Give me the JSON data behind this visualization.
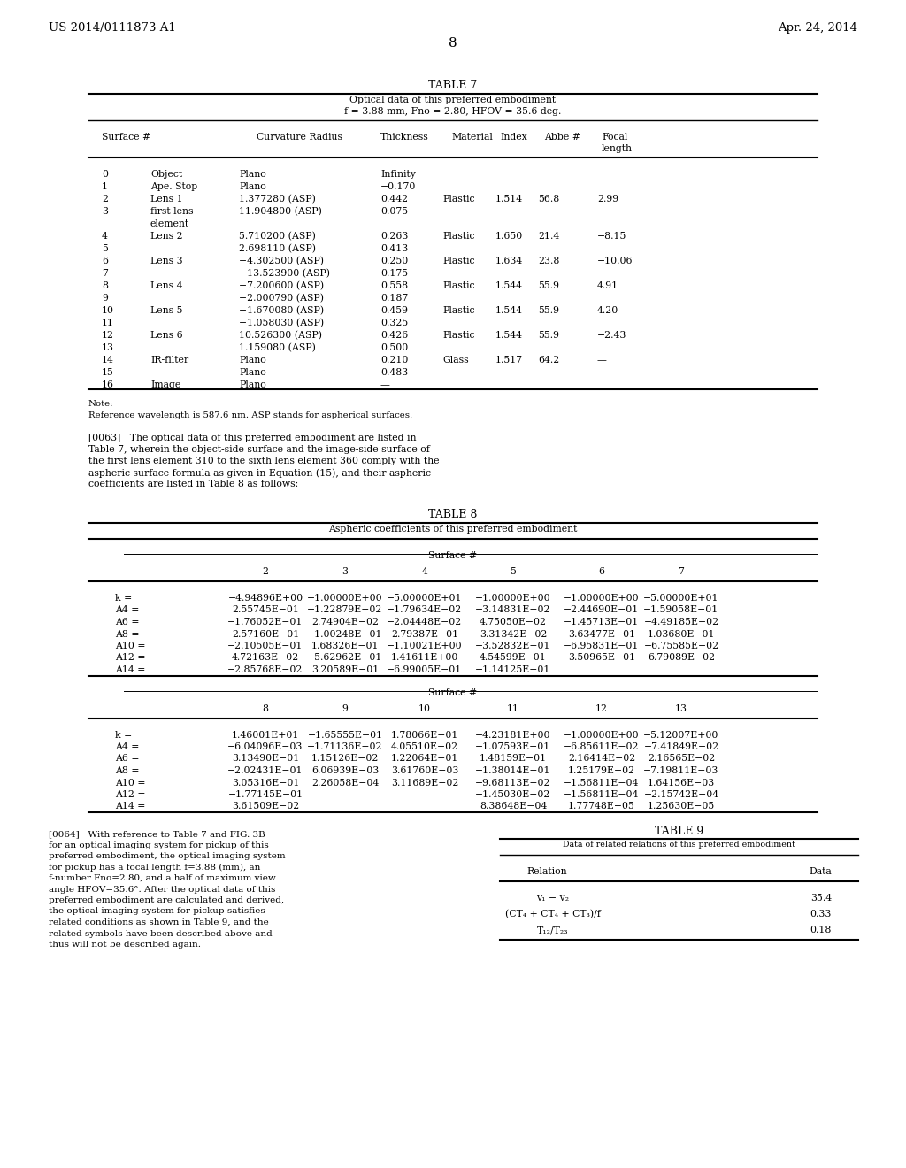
{
  "header_left": "US 2014/0111873 A1",
  "header_right": "Apr. 24, 2014",
  "page_number": "8",
  "table7_title": "TABLE 7",
  "table7_subtitle1": "Optical data of this preferred embodiment",
  "table7_subtitle2": "f = 3.88 mm, Fno = 2.80, HFOV = 35.6 deg.",
  "table7_col_headers": [
    "Surface #",
    "",
    "Curvature Radius",
    "Thickness",
    "Material",
    "Index",
    "Abbe #",
    "Focal\nlength"
  ],
  "table7_rows": [
    [
      "0",
      "Object",
      "Plano",
      "Infinity",
      "",
      "",
      "",
      ""
    ],
    [
      "1",
      "Ape. Stop",
      "Plano",
      "−0.170",
      "",
      "",
      "",
      ""
    ],
    [
      "2",
      "Lens 1",
      "1.377280 (ASP)",
      "0.442",
      "Plastic",
      "1.514",
      "56.8",
      "2.99"
    ],
    [
      "3",
      "first lens",
      "11.904800 (ASP)",
      "0.075",
      "",
      "",
      "",
      ""
    ],
    [
      "",
      "element",
      "",
      "",
      "",
      "",
      "",
      ""
    ],
    [
      "4",
      "Lens 2",
      "5.710200 (ASP)",
      "0.263",
      "Plastic",
      "1.650",
      "21.4",
      "−8.15"
    ],
    [
      "5",
      "",
      "2.698110 (ASP)",
      "0.413",
      "",
      "",
      "",
      ""
    ],
    [
      "6",
      "Lens 3",
      "−4.302500 (ASP)",
      "0.250",
      "Plastic",
      "1.634",
      "23.8",
      "−10.06"
    ],
    [
      "7",
      "",
      "−13.523900 (ASP)",
      "0.175",
      "",
      "",
      "",
      ""
    ],
    [
      "8",
      "Lens 4",
      "−7.200600 (ASP)",
      "0.558",
      "Plastic",
      "1.544",
      "55.9",
      "4.91"
    ],
    [
      "9",
      "",
      "−2.000790 (ASP)",
      "0.187",
      "",
      "",
      "",
      ""
    ],
    [
      "10",
      "Lens 5",
      "−1.670080 (ASP)",
      "0.459",
      "Plastic",
      "1.544",
      "55.9",
      "4.20"
    ],
    [
      "11",
      "",
      "−1.058030 (ASP)",
      "0.325",
      "",
      "",
      "",
      ""
    ],
    [
      "12",
      "Lens 6",
      "10.526300 (ASP)",
      "0.426",
      "Plastic",
      "1.544",
      "55.9",
      "−2.43"
    ],
    [
      "13",
      "",
      "1.159080 (ASP)",
      "0.500",
      "",
      "",
      "",
      ""
    ],
    [
      "14",
      "IR-filter",
      "Plano",
      "0.210",
      "Glass",
      "1.517",
      "64.2",
      "—"
    ],
    [
      "15",
      "",
      "Plano",
      "0.483",
      "",
      "",
      "",
      ""
    ],
    [
      "16",
      "Image",
      "Plano",
      "—",
      "",
      "",
      "",
      ""
    ]
  ],
  "note_text": "Note:\nReference wavelength is 587.6 nm. ASP stands for aspherical surfaces.",
  "para63": "[0063]   The optical data of this preferred embodiment are listed in Table 7, wherein the object-side surface and the image-side surface of the first lens element 310 to the sixth lens element 360 comply with the aspheric surface formula as given in Equation (15), and their aspheric coefficients are listed in Table 8 as follows:",
  "table8_title": "TABLE 8",
  "table8_subtitle": "Aspheric coefficients of this preferred embodiment",
  "table8_surf1": [
    "2",
    "3",
    "4",
    "5",
    "6",
    "7"
  ],
  "table8_surf2": [
    "8",
    "9",
    "10",
    "11",
    "12",
    "13"
  ],
  "table8_rows1": [
    [
      "k =",
      "−4.94896E+00",
      "−1.00000E+00",
      "−5.00000E+01",
      "−1.00000E+00",
      "−1.00000E+00",
      "−5.00000E+01"
    ],
    [
      "A4 =",
      "2.55745E−01",
      "−1.22879E−02",
      "−1.79634E−02",
      "−3.14831E−02",
      "−2.44690E−01",
      "−1.59058E−01"
    ],
    [
      "A6 =",
      "−1.76052E−01",
      "2.74904E−02",
      "−2.04448E−02",
      "4.75050E−02",
      "−1.45713E−01",
      "−4.49185E−02"
    ],
    [
      "A8 =",
      "2.57160E−01",
      "−1.00248E−01",
      "2.79387E−01",
      "3.31342E−02",
      "3.63477E−01",
      "1.03680E−01"
    ],
    [
      "A10 =",
      "−2.10505E−01",
      "1.68326E−01",
      "−1.10021E+00",
      "−3.52832E−01",
      "−6.95831E−01",
      "−6.75585E−02"
    ],
    [
      "A12 =",
      "4.72163E−02",
      "−5.62962E−01",
      "1.41611E+00",
      "4.54599E−01",
      "3.50965E−01",
      "6.79089E−02"
    ],
    [
      "A14 =",
      "−2.85768E−02",
      "3.20589E−01",
      "−6.99005E−01",
      "−1.14125E−01",
      "",
      ""
    ]
  ],
  "table8_rows2": [
    [
      "k =",
      "1.46001E+01",
      "−1.65555E−01",
      "1.78066E−01",
      "−4.23181E+00",
      "−1.00000E+00",
      "−5.12007E+00"
    ],
    [
      "A4 =",
      "−6.04096E−03",
      "−1.71136E−02",
      "4.05510E−02",
      "−1.07593E−01",
      "−6.85611E−02",
      "−7.41849E−02"
    ],
    [
      "A6 =",
      "3.13490E−01",
      "1.15126E−02",
      "1.22064E−01",
      "1.48159E−01",
      "2.16414E−02",
      "2.16565E−02"
    ],
    [
      "A8 =",
      "−2.02431E−01",
      "6.06939E−03",
      "3.61760E−03",
      "−1.38014E−01",
      "1.25179E−02",
      "−7.19811E−03"
    ],
    [
      "A10 =",
      "3.05316E−01",
      "2.26058E−04",
      "3.11689E−02",
      "−9.68113E−02",
      "−1.56811E−04",
      "1.64156E−03"
    ],
    [
      "A12 =",
      "−1.77145E−01",
      "",
      "",
      "−1.45030E−02",
      "−1.56811E−04",
      "−2.15742E−04"
    ],
    [
      "A14 =",
      "3.61509E−02",
      "",
      "",
      "8.38648E−04",
      "1.77748E−05",
      "1.25630E−05"
    ]
  ],
  "para64": "[0064]   With reference to Table 7 and FIG. 3B for an optical imaging system for pickup of this preferred embodiment, the optical imaging system for pickup has a focal length f=3.88 (mm), an f-number Fno=2.80, and a half of maximum view angle HFOV=35.6°. After the optical data of this preferred embodiment are calculated and derived, the optical imaging system for pickup satisfies related conditions as shown in Table 9, and the related symbols have been described above and thus will not be described again.",
  "table9_title": "TABLE 9",
  "table9_subtitle": "Data of related relations of this preferred embodiment",
  "table9_col_headers": [
    "Relation",
    "Data"
  ],
  "table9_rows": [
    [
      "v₁ − v₂",
      "35.4"
    ],
    [
      "(CT₄ + CT₄ + CT₃)/f",
      "0.33"
    ],
    [
      "T₁₂/T₂₃",
      "0.18"
    ]
  ]
}
